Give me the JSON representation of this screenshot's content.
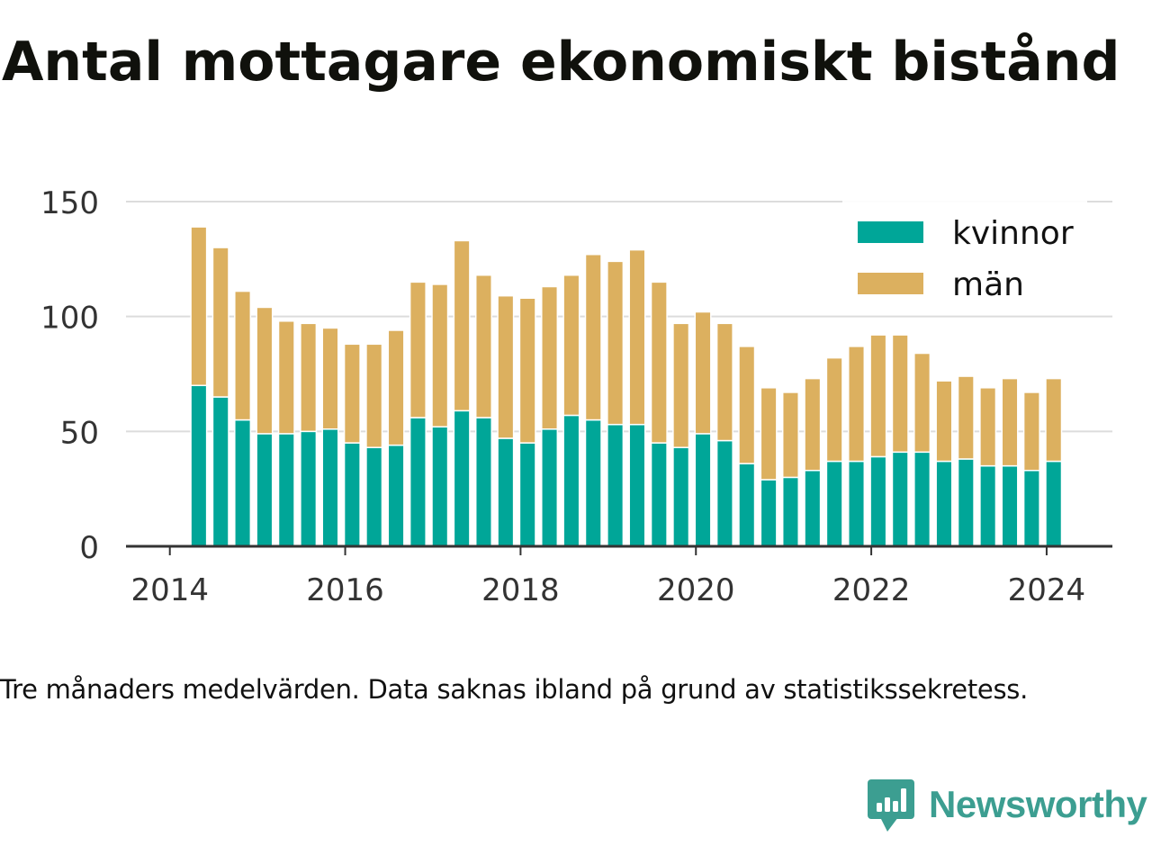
{
  "title": "Antal mottagare ekonomiskt bistånd",
  "caption": "Tre månaders medelvärden. Data saknas ibland på grund av statistikssekretess.",
  "brand": {
    "name": "Newsworthy",
    "logo_icon": "newsworthy-logo-icon",
    "color": "#3c9e91"
  },
  "chart_data": {
    "type": "bar",
    "stacked": true,
    "x": [
      2014.33,
      2014.58,
      2014.83,
      2015.08,
      2015.33,
      2015.58,
      2015.83,
      2016.08,
      2016.33,
      2016.58,
      2016.83,
      2017.08,
      2017.33,
      2017.58,
      2017.83,
      2018.08,
      2018.33,
      2018.58,
      2018.83,
      2019.08,
      2019.33,
      2019.58,
      2019.83,
      2020.08,
      2020.33,
      2020.58,
      2020.83,
      2021.08,
      2021.33,
      2021.58,
      2021.83,
      2022.08,
      2022.33,
      2022.58,
      2022.83,
      2023.08,
      2023.33,
      2023.58,
      2023.83,
      2024.08
    ],
    "series": [
      {
        "name": "kvinnor",
        "color": "#00a698",
        "values": [
          70,
          65,
          55,
          49,
          49,
          50,
          51,
          45,
          43,
          44,
          56,
          52,
          59,
          56,
          47,
          45,
          51,
          57,
          55,
          53,
          53,
          45,
          43,
          49,
          46,
          36,
          29,
          30,
          33,
          37,
          37,
          39,
          41,
          41,
          37,
          38,
          35,
          35,
          33,
          37
        ]
      },
      {
        "name": "män",
        "color": "#dcb05f",
        "values": [
          69,
          65,
          56,
          55,
          49,
          47,
          44,
          43,
          45,
          50,
          59,
          62,
          74,
          62,
          62,
          63,
          62,
          61,
          72,
          71,
          76,
          70,
          54,
          53,
          51,
          51,
          40,
          37,
          40,
          45,
          50,
          53,
          51,
          43,
          35,
          36,
          34,
          38,
          34,
          36
        ]
      }
    ],
    "xlim": [
      2013.5,
      2024.75
    ],
    "ylim": [
      0,
      150
    ],
    "x_ticks": [
      "2014",
      "2016",
      "2018",
      "2020",
      "2022",
      "2024"
    ],
    "y_ticks": [
      "0",
      "50",
      "100",
      "150"
    ],
    "grid": "horizontal",
    "legend": "top-right",
    "xlabel": "",
    "ylabel": ""
  }
}
